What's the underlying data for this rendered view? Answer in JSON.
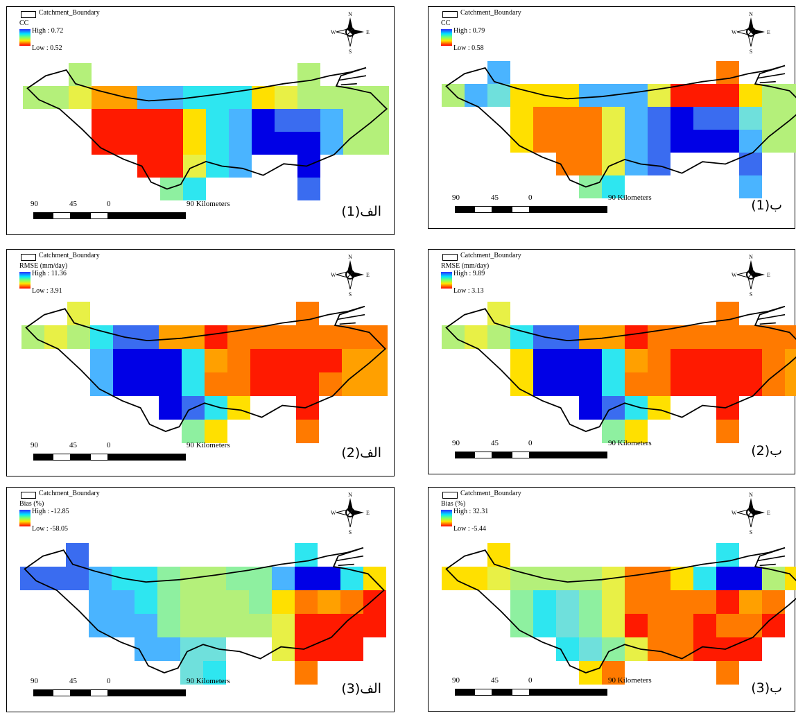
{
  "panels": [
    {
      "id": "a1",
      "legend_title": "Catchment_Boundary",
      "var_name": "CC",
      "high": "High : 0.72",
      "low": "Low : 0.52",
      "scale_nums": [
        "90",
        "45",
        "0",
        "90 Kilometers"
      ],
      "label_arabic": "الف",
      "label_num": "(1)",
      "label_arabic_after": true,
      "grid": "G.Y.C.O.O..........C.G....O.R.R.O.Y.C.B.N.B.B.B.C......R.R.O.Y.C.B.N.N.N.C......R.O.Y.C..........G.C........................"
    },
    {
      "id": "b1",
      "legend_title": "Catchment_Boundary",
      "var_name": "CC",
      "high": "High : 0.79",
      "low": "Low : 0.58",
      "scale_nums": [
        "90",
        "45",
        "0",
        "90 Kilometers"
      ],
      "label_arabic": "ب",
      "label_num": "(1)",
      "label_arabic_after": true
    },
    {
      "id": "a2",
      "legend_title": "Catchment_Boundary",
      "var_name": "RMSE (mm/day)",
      "high": "High : 11.36",
      "low": "Low : 3.91",
      "scale_nums": [
        "90",
        "45",
        "0",
        "90 Kilometers"
      ],
      "label_arabic": "الف",
      "label_num": "(2)",
      "label_arabic_after": true
    },
    {
      "id": "b2",
      "legend_title": "Catchment_Boundary",
      "var_name": "RMSE (mm/day)",
      "high": "High : 9.89",
      "low": "Low : 3.13",
      "scale_nums": [
        "90",
        "45",
        "0",
        "90 Kilometers"
      ],
      "label_arabic": "ب",
      "label_num": "(2)",
      "label_arabic_after": true
    },
    {
      "id": "a3",
      "legend_title": "Catchment_Boundary",
      "var_name": "Bias (%)",
      "high": "High : -12.85",
      "low": "Low : -58.05",
      "scale_nums": [
        "90",
        "45",
        "0",
        "90 Kilometers"
      ],
      "label_arabic": "الف",
      "label_num": "(3)",
      "label_arabic_after": true
    },
    {
      "id": "b3",
      "legend_title": "Catchment_Boundary",
      "var_name": "Bias (%)",
      "high": "High : 32.31",
      "low": "Low : -5.44",
      "scale_nums": [
        "90",
        "45",
        "0",
        "90 Kilometers"
      ],
      "label_arabic": "ب",
      "label_num": "(3)",
      "label_arabic_after": true
    }
  ],
  "compass_letters": {
    "n": "N",
    "s": "S",
    "e": "E",
    "w": "W"
  },
  "palette": {
    "R": "#ff1a00",
    "O": "#ff7a00",
    "o": "#ffa000",
    "Y": "#ffe000",
    "y": "#e8f046",
    "G": "#b4f07a",
    "g": "#8ef0a0",
    "C": "#2ee6f0",
    "c": "#6fe0dc",
    "L": "#4ab4ff",
    "B": "#3a6cf0",
    "N": "#0000e6",
    "b": "#2040f8"
  },
  "grids": {
    "a1": [
      "..G.........G...",
      "GGyooLLCCCYyGGGG",
      "...RRRRYCLNBBLGG",
      "...RRRRYCLNNNLGG",
      ".....RRyCL..N...",
      "......gC....B..."
    ],
    "b1": [
      "..L.........O...",
      "GLcYYYLLLyRRRYGG",
      "...YOOOyLBNBBcGG",
      "...YOOOyLBNNNLGG",
      ".....OOyLB...B..",
      "......gC.....L.."
    ],
    "a2": [
      "..y.........O...",
      "GyGCBBooROOOOOOO",
      "...LNNNCoORRRRoo",
      "...LNNNCOORRROoo",
      "......NBCY..R...",
      ".......gY...O..."
    ],
    "b2": [
      "..y.........O...",
      "GyGCBBooROOOOOOO",
      "...YNNNCoORRRROo",
      "...YNNNCOORRRROo",
      "......NBCY..R...",
      ".......gY...O..."
    ],
    "a3": [
      "..B.........C...",
      "BBBLCCgGGggLNNCY",
      "...LLCgGGGgYOoOR",
      "...LLLgGGGGyRRRR",
      ".....LLcc..yRRR.",
      ".......cC...O..."
    ],
    "b3": [
      "..Y.........C...",
      "YYyGGGGyOOYCNNGY",
      "...gCcgyOOOORoO.",
      "...gCcgyROOROOR.",
      ".....CcgyOORRR..",
      "......YO....O..."
    ]
  }
}
